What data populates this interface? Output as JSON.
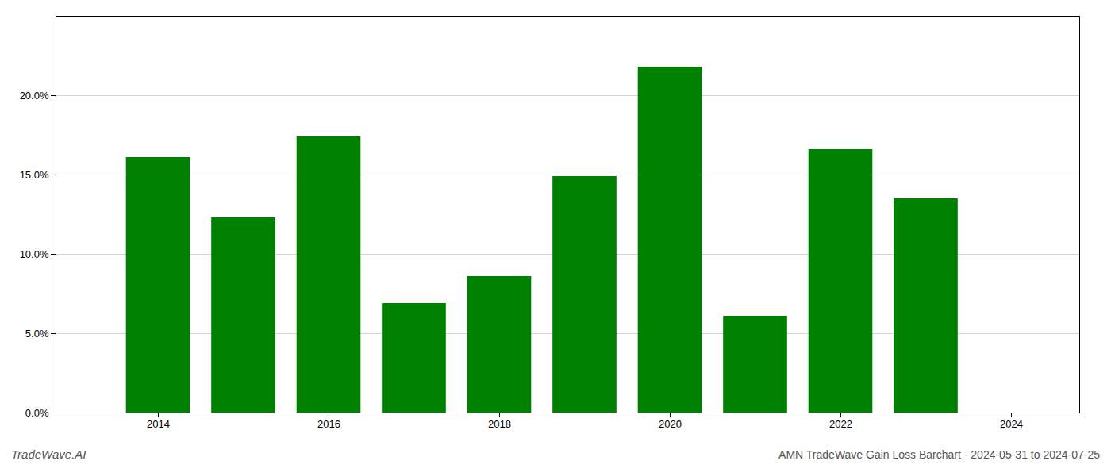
{
  "chart_data": {
    "type": "bar",
    "title": "AMN TradeWave Gain Loss Barchart - 2024-05-31 to 2024-07-25",
    "annotations": [
      "TradeWave.AI"
    ],
    "x": [
      2014,
      2015,
      2016,
      2017,
      2018,
      2019,
      2020,
      2021,
      2022,
      2023
    ],
    "values": [
      0.161,
      0.123,
      0.174,
      0.069,
      0.086,
      0.149,
      0.218,
      0.061,
      0.166,
      0.135
    ],
    "color": "#008000",
    "xlim": [
      2012.8,
      2024.8
    ],
    "xticks": [
      2014,
      2016,
      2018,
      2020,
      2022,
      2024
    ],
    "ylim": [
      0.0,
      0.25
    ],
    "yticks": [
      {
        "value": 0.0,
        "label": "0.0%"
      },
      {
        "value": 0.05,
        "label": "5.0%"
      },
      {
        "value": 0.1,
        "label": "10.0%"
      },
      {
        "value": 0.15,
        "label": "15.0%"
      },
      {
        "value": 0.2,
        "label": "20.0%"
      }
    ],
    "grid": true
  }
}
